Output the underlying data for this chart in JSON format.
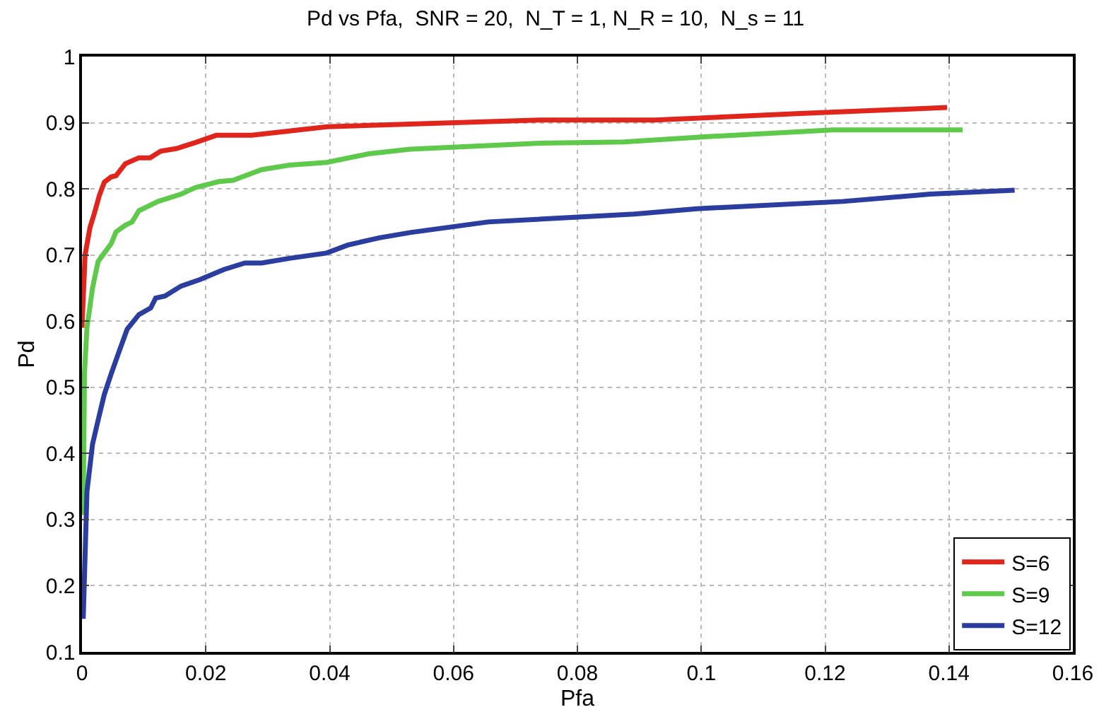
{
  "chart_data": {
    "type": "line",
    "title": "Pd vs Pfa,  SNR = 20,  N_T = 1, N_R = 10,  N_s = 11",
    "xlabel": "Pfa",
    "ylabel": "Pd",
    "xlim": [
      0,
      0.16
    ],
    "xticks": [
      0,
      0.02,
      0.04,
      0.06,
      0.08,
      0.1,
      0.12,
      0.14,
      0.16
    ],
    "ylim": [
      0.1,
      1
    ],
    "yticks": [
      0.1,
      0.2,
      0.3,
      0.4,
      0.5,
      0.6,
      0.7,
      0.8,
      0.9,
      1
    ],
    "grid": true,
    "legend": "bottom right",
    "line_style": "solid",
    "marker": "none",
    "series": [
      {
        "name": "S=6",
        "color": "#e0261c",
        "x": [
          0,
          0.0005,
          0.0013,
          0.002,
          0.0028,
          0.0036,
          0.0047,
          0.0055,
          0.007,
          0.0092,
          0.011,
          0.0127,
          0.0153,
          0.0183,
          0.0217,
          0.0274,
          0.032,
          0.0396,
          0.074,
          0.0926,
          0.116,
          0.1397
        ],
        "values": [
          0.59,
          0.7,
          0.742,
          0.763,
          0.79,
          0.81,
          0.818,
          0.82,
          0.838,
          0.847,
          0.847,
          0.857,
          0.861,
          0.87,
          0.881,
          0.881,
          0.886,
          0.894,
          0.904,
          0.904,
          0.914,
          0.923
        ]
      },
      {
        "name": "S=9",
        "color": "#5ec94a",
        "x": [
          0.0002,
          0.0004,
          0.0008,
          0.0017,
          0.0026,
          0.0036,
          0.0047,
          0.0055,
          0.007,
          0.0081,
          0.0092,
          0.0123,
          0.016,
          0.0183,
          0.0221,
          0.0244,
          0.029,
          0.0335,
          0.0395,
          0.0463,
          0.053,
          0.074,
          0.0875,
          0.101,
          0.1212,
          0.1422
        ],
        "values": [
          0.307,
          0.52,
          0.59,
          0.65,
          0.69,
          0.703,
          0.717,
          0.735,
          0.745,
          0.75,
          0.767,
          0.781,
          0.792,
          0.802,
          0.811,
          0.813,
          0.829,
          0.836,
          0.84,
          0.853,
          0.86,
          0.869,
          0.871,
          0.879,
          0.889,
          0.889
        ]
      },
      {
        "name": "S=12",
        "color": "#2b3ea0",
        "x": [
          0.0002,
          0.0008,
          0.0017,
          0.0026,
          0.0036,
          0.0047,
          0.0058,
          0.0073,
          0.0092,
          0.0111,
          0.0119,
          0.0134,
          0.016,
          0.0191,
          0.0229,
          0.0263,
          0.029,
          0.0335,
          0.0395,
          0.0429,
          0.048,
          0.053,
          0.0656,
          0.0892,
          0.0993,
          0.1229,
          0.137,
          0.1506
        ],
        "values": [
          0.15,
          0.342,
          0.414,
          0.45,
          0.489,
          0.52,
          0.549,
          0.588,
          0.61,
          0.62,
          0.635,
          0.638,
          0.653,
          0.663,
          0.678,
          0.688,
          0.688,
          0.695,
          0.703,
          0.715,
          0.726,
          0.734,
          0.75,
          0.762,
          0.77,
          0.781,
          0.792,
          0.798
        ]
      }
    ]
  }
}
